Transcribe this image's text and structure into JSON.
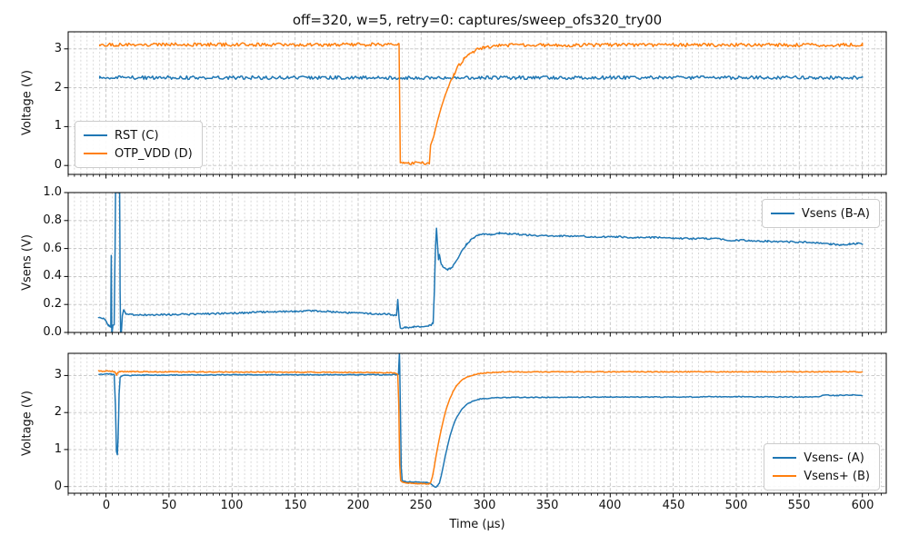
{
  "chart_data": {
    "type": "line",
    "title": "off=320, w=5, retry=0: captures/sweep_ofs320_try00",
    "xlabel": "Time (µs)",
    "xlim": [
      -30,
      619
    ],
    "x_minor_step": 5,
    "x_tick_values": [
      0,
      50,
      100,
      150,
      200,
      250,
      300,
      350,
      400,
      450,
      500,
      550,
      600
    ],
    "x_tick_labels": [
      "0",
      "50",
      "100",
      "150",
      "200",
      "250",
      "300",
      "350",
      "400",
      "450",
      "500",
      "550",
      "600"
    ],
    "grid": "both-x-minor, dashed, light gray",
    "colors": {
      "blue": "#1f77b4",
      "orange": "#ff7f0e"
    },
    "subplots": [
      {
        "ylabel": "Voltage (V)",
        "ylim": [
          -0.23,
          3.44
        ],
        "ytick_values": [
          0,
          1,
          2,
          3
        ],
        "ytick_labels": [
          "0",
          "1",
          "2",
          "3"
        ],
        "legend": {
          "position": "lower-left",
          "items": [
            {
              "label": "RST (C)",
              "color": "#1f77b4"
            },
            {
              "label": "OTP_VDD (D)",
              "color": "#ff7f0e"
            }
          ]
        },
        "series": [
          {
            "name": "RST (C)",
            "color": "#1f77b4",
            "noise": 0.045,
            "points": [
              [
                -5,
                2.26
              ],
              [
                600,
                2.26
              ]
            ]
          },
          {
            "name": "OTP_VDD (D)",
            "color": "#ff7f0e",
            "noise": 0.045,
            "points": [
              [
                -5,
                3.11
              ],
              [
                8,
                3.11
              ],
              [
                9,
                3.07
              ],
              [
                10,
                3.11
              ],
              [
                232.5,
                3.11
              ],
              [
                233.5,
                0.07
              ],
              [
                236,
                0.05
              ],
              [
                256.5,
                0.05
              ],
              [
                257.5,
                0.52
              ],
              [
                260,
                0.75
              ],
              [
                263,
                1.15
              ],
              [
                266,
                1.5
              ],
              [
                269,
                1.8
              ],
              [
                272,
                2.05
              ],
              [
                276,
                2.35
              ],
              [
                280,
                2.58
              ],
              [
                284,
                2.73
              ],
              [
                288,
                2.85
              ],
              [
                292,
                2.94
              ],
              [
                296,
                3.0
              ],
              [
                300,
                3.04
              ],
              [
                306,
                3.07
              ],
              [
                312,
                3.09
              ],
              [
                320,
                3.1
              ],
              [
                600,
                3.1
              ]
            ]
          }
        ]
      },
      {
        "ylabel": "Vsens (V)",
        "ylim": [
          0.0,
          1.0
        ],
        "ytick_values": [
          0,
          0.2,
          0.4,
          0.6,
          0.8,
          1.0
        ],
        "ytick_labels": [
          "0.0",
          "0.2",
          "0.4",
          "0.6",
          "0.8",
          "1.0"
        ],
        "legend": {
          "position": "upper-right",
          "items": [
            {
              "label": "Vsens (B-A)",
              "color": "#1f77b4"
            }
          ]
        },
        "series": [
          {
            "name": "Vsens (B-A)",
            "color": "#1f77b4",
            "noise": 0.006,
            "points": [
              [
                -6,
                0.105
              ],
              [
                -2,
                0.1
              ],
              [
                0,
                0.08
              ],
              [
                2,
                0.05
              ],
              [
                3,
                0.04
              ],
              [
                3.8,
                0.04
              ],
              [
                4.2,
                0.55
              ],
              [
                4.6,
                -0.02
              ],
              [
                5.5,
                0.05
              ],
              [
                6.5,
                0.06
              ],
              [
                7.2,
                0.6
              ],
              [
                7.6,
                1.05
              ],
              [
                10.8,
                1.05
              ],
              [
                11.2,
                0.3
              ],
              [
                11.6,
                -0.02
              ],
              [
                12.2,
                0.0
              ],
              [
                13,
                0.12
              ],
              [
                14,
                0.16
              ],
              [
                16,
                0.13
              ],
              [
                30,
                0.125
              ],
              [
                50,
                0.128
              ],
              [
                70,
                0.13
              ],
              [
                90,
                0.135
              ],
              [
                110,
                0.14
              ],
              [
                130,
                0.148
              ],
              [
                150,
                0.15
              ],
              [
                165,
                0.155
              ],
              [
                180,
                0.148
              ],
              [
                195,
                0.14
              ],
              [
                210,
                0.135
              ],
              [
                225,
                0.13
              ],
              [
                230.5,
                0.12
              ],
              [
                231.5,
                0.235
              ],
              [
                232.5,
                0.1
              ],
              [
                233.5,
                0.03
              ],
              [
                238,
                0.035
              ],
              [
                244,
                0.04
              ],
              [
                250,
                0.04
              ],
              [
                256,
                0.05
              ],
              [
                258,
                0.055
              ],
              [
                259.5,
                0.07
              ],
              [
                260.5,
                0.3
              ],
              [
                261.5,
                0.62
              ],
              [
                262.2,
                0.745
              ],
              [
                263,
                0.63
              ],
              [
                263.8,
                0.52
              ],
              [
                264.5,
                0.56
              ],
              [
                265.5,
                0.5
              ],
              [
                267,
                0.475
              ],
              [
                269,
                0.46
              ],
              [
                271,
                0.45
              ],
              [
                273,
                0.455
              ],
              [
                275,
                0.47
              ],
              [
                277,
                0.5
              ],
              [
                280,
                0.545
              ],
              [
                283,
                0.59
              ],
              [
                286,
                0.63
              ],
              [
                289,
                0.66
              ],
              [
                292,
                0.68
              ],
              [
                296,
                0.7
              ],
              [
                300,
                0.705
              ],
              [
                306,
                0.7
              ],
              [
                312,
                0.71
              ],
              [
                320,
                0.705
              ],
              [
                330,
                0.7
              ],
              [
                345,
                0.69
              ],
              [
                360,
                0.688
              ],
              [
                375,
                0.69
              ],
              [
                390,
                0.682
              ],
              [
                405,
                0.685
              ],
              [
                420,
                0.678
              ],
              [
                435,
                0.68
              ],
              [
                450,
                0.675
              ],
              [
                465,
                0.67
              ],
              [
                480,
                0.672
              ],
              [
                495,
                0.66
              ],
              [
                510,
                0.658
              ],
              [
                525,
                0.652
              ],
              [
                540,
                0.648
              ],
              [
                555,
                0.645
              ],
              [
                565,
                0.64
              ],
              [
                575,
                0.632
              ],
              [
                583,
                0.625
              ],
              [
                590,
                0.632
              ],
              [
                596,
                0.636
              ],
              [
                600,
                0.63
              ]
            ]
          }
        ]
      },
      {
        "ylabel": "Voltage (V)",
        "ylim": [
          -0.18,
          3.6
        ],
        "ytick_values": [
          0,
          1,
          2,
          3
        ],
        "ytick_labels": [
          "0",
          "1",
          "2",
          "3"
        ],
        "legend": {
          "position": "lower-right",
          "items": [
            {
              "label": "Vsens- (A)",
              "color": "#1f77b4"
            },
            {
              "label": "Vsens+ (B)",
              "color": "#ff7f0e"
            }
          ]
        },
        "series": [
          {
            "name": "Vsens- (A)",
            "color": "#1f77b4",
            "noise": 0.012,
            "points": [
              [
                -6,
                3.04
              ],
              [
                4,
                3.04
              ],
              [
                6.5,
                3.02
              ],
              [
                7.5,
                2.2
              ],
              [
                8.3,
                0.95
              ],
              [
                9,
                0.86
              ],
              [
                9.6,
                1.3
              ],
              [
                10.4,
                2.5
              ],
              [
                11.2,
                2.95
              ],
              [
                13,
                3.0
              ],
              [
                30,
                3.01
              ],
              [
                100,
                3.02
              ],
              [
                200,
                3.02
              ],
              [
                230,
                3.02
              ],
              [
                232,
                3.04
              ],
              [
                232.8,
                3.75
              ],
              [
                233.6,
                2.0
              ],
              [
                234.2,
                0.5
              ],
              [
                235,
                0.16
              ],
              [
                238,
                0.13
              ],
              [
                244,
                0.125
              ],
              [
                250,
                0.12
              ],
              [
                254,
                0.11
              ],
              [
                257,
                0.09
              ],
              [
                259,
                0.04
              ],
              [
                260.5,
                0.0
              ],
              [
                262,
                -0.02
              ],
              [
                263,
                0.02
              ],
              [
                264.5,
                0.1
              ],
              [
                266,
                0.3
              ],
              [
                267.5,
                0.55
              ],
              [
                269,
                0.8
              ],
              [
                271,
                1.1
              ],
              [
                273,
                1.38
              ],
              [
                275,
                1.6
              ],
              [
                277,
                1.78
              ],
              [
                279,
                1.92
              ],
              [
                282,
                2.08
              ],
              [
                285,
                2.18
              ],
              [
                288,
                2.26
              ],
              [
                292,
                2.32
              ],
              [
                296,
                2.36
              ],
              [
                300,
                2.38
              ],
              [
                310,
                2.4
              ],
              [
                325,
                2.41
              ],
              [
                350,
                2.41
              ],
              [
                400,
                2.42
              ],
              [
                450,
                2.42
              ],
              [
                500,
                2.43
              ],
              [
                530,
                2.42
              ],
              [
                560,
                2.42
              ],
              [
                566,
                2.42
              ],
              [
                568,
                2.47
              ],
              [
                580,
                2.46
              ],
              [
                592,
                2.48
              ],
              [
                600,
                2.46
              ]
            ]
          },
          {
            "name": "Vsens+ (B)",
            "color": "#ff7f0e",
            "noise": 0.012,
            "points": [
              [
                -6,
                3.12
              ],
              [
                4,
                3.12
              ],
              [
                7,
                3.1
              ],
              [
                8.5,
                3.02
              ],
              [
                9.5,
                3.08
              ],
              [
                11,
                3.11
              ],
              [
                50,
                3.1
              ],
              [
                150,
                3.09
              ],
              [
                225,
                3.08
              ],
              [
                230.5,
                3.06
              ],
              [
                231.5,
                3.02
              ],
              [
                232.3,
                2.2
              ],
              [
                233,
                0.6
              ],
              [
                233.8,
                0.16
              ],
              [
                236,
                0.11
              ],
              [
                240,
                0.095
              ],
              [
                246,
                0.085
              ],
              [
                252,
                0.078
              ],
              [
                256,
                0.072
              ],
              [
                257.5,
                0.1
              ],
              [
                259,
                0.28
              ],
              [
                260.5,
                0.55
              ],
              [
                262,
                0.85
              ],
              [
                264,
                1.22
              ],
              [
                266,
                1.55
              ],
              [
                268,
                1.85
              ],
              [
                270,
                2.1
              ],
              [
                272.5,
                2.35
              ],
              [
                275,
                2.55
              ],
              [
                278,
                2.72
              ],
              [
                281,
                2.84
              ],
              [
                284,
                2.92
              ],
              [
                288,
                2.98
              ],
              [
                292,
                3.02
              ],
              [
                296,
                3.05
              ],
              [
                302,
                3.07
              ],
              [
                310,
                3.09
              ],
              [
                320,
                3.1
              ],
              [
                600,
                3.1
              ]
            ]
          }
        ]
      }
    ]
  }
}
